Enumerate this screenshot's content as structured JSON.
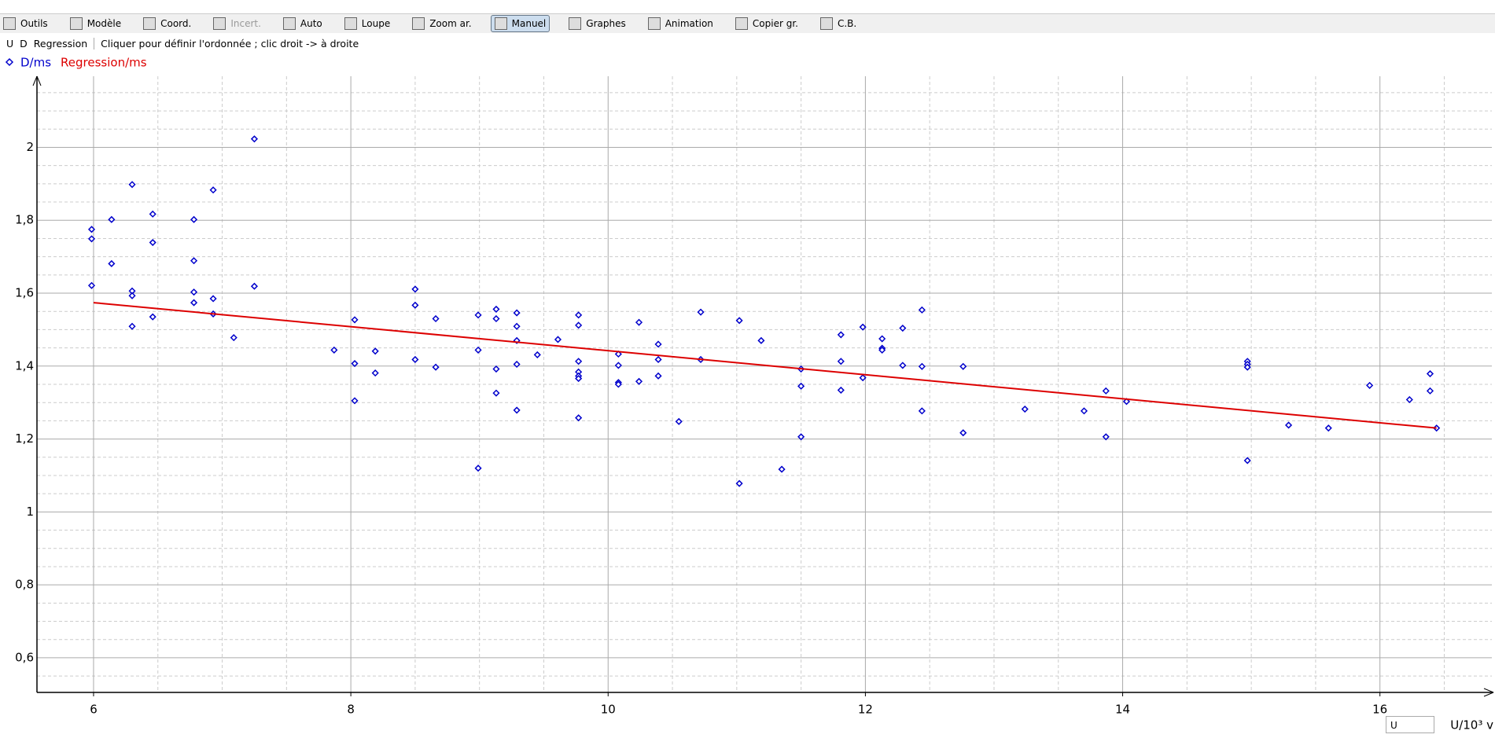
{
  "toolbar": [
    "Outils",
    "Modèle",
    "Coord.",
    "Incert.",
    "Auto",
    "Loupe",
    "Zoom ar.",
    "Manuel",
    "Graphes",
    "Animation",
    "Copier gr.",
    "C.B."
  ],
  "subbar": {
    "tabs": [
      "U",
      "D",
      "Regression"
    ],
    "hint": "Cliquer pour définir l'ordonnée ; clic droit -> à droite"
  },
  "x_selector": "U",
  "chart_data": {
    "type": "scatter",
    "xlabel": "U/10³ v",
    "xlim": [
      5.56,
      16.87
    ],
    "ylim": [
      0.505,
      2.195
    ],
    "xticks": [
      6,
      8,
      10,
      12,
      14,
      16
    ],
    "yticks": [
      {
        "value": 0.6,
        "label": "0,6"
      },
      {
        "value": 0.8,
        "label": "0,8"
      },
      1,
      {
        "value": 1.2,
        "label": "1,2"
      },
      {
        "value": 1.4,
        "label": "1,4"
      },
      {
        "value": 1.6,
        "label": "1,6"
      },
      {
        "value": 1.8,
        "label": "1,8"
      },
      2
    ],
    "x_minor_ticks": [
      6.5,
      7,
      7.5,
      8.5,
      9,
      9.5,
      10.5,
      11,
      11.5,
      12.5,
      13,
      13.5,
      14.5,
      15,
      15.5,
      16.5
    ],
    "y_minor_ticks": [
      0.55,
      0.65,
      0.7,
      0.75,
      0.85,
      0.9,
      0.95,
      1.05,
      1.1,
      1.15,
      1.25,
      1.3,
      1.35,
      1.45,
      1.5,
      1.55,
      1.65,
      1.7,
      1.75,
      1.85,
      1.9,
      1.95,
      2.05,
      2.1,
      2.15
    ],
    "grid": true,
    "series": [
      {
        "name": "D/ms",
        "color": "#0000cc",
        "marker": "diamond",
        "x": [
          5.985,
          5.985,
          5.985,
          6.14,
          6.14,
          6.3,
          6.3,
          6.3,
          6.3,
          6.46,
          6.46,
          6.46,
          6.78,
          6.78,
          6.78,
          6.78,
          6.93,
          6.93,
          6.93,
          7.09,
          7.25,
          7.25,
          7.87,
          8.03,
          8.03,
          8.03,
          8.19,
          8.19,
          8.5,
          8.5,
          8.5,
          8.66,
          8.66,
          8.99,
          8.99,
          8.99,
          9.13,
          9.13,
          9.13,
          9.13,
          9.29,
          9.29,
          9.29,
          9.29,
          9.29,
          9.45,
          9.61,
          9.77,
          9.77,
          9.77,
          9.77,
          9.77,
          9.77,
          9.77,
          10.08,
          10.08,
          10.08,
          10.08,
          10.24,
          10.24,
          10.39,
          10.39,
          10.39,
          10.55,
          10.72,
          10.72,
          11.02,
          11.02,
          11.19,
          11.35,
          11.5,
          11.5,
          11.5,
          11.81,
          11.81,
          11.81,
          11.98,
          11.98,
          12.13,
          12.13,
          12.13,
          12.29,
          12.29,
          12.44,
          12.44,
          12.44,
          12.76,
          12.76,
          13.24,
          13.7,
          13.87,
          13.87,
          14.03,
          14.97,
          14.97,
          14.97,
          14.97,
          15.29,
          15.6,
          15.92,
          16.23,
          16.39,
          16.39,
          16.44
        ],
        "values": [
          1.775,
          1.749,
          1.621,
          1.802,
          1.681,
          1.898,
          1.606,
          1.593,
          1.509,
          1.817,
          1.739,
          1.535,
          1.802,
          1.689,
          1.603,
          1.574,
          1.883,
          1.585,
          1.543,
          1.478,
          2.023,
          1.619,
          1.444,
          1.527,
          1.407,
          1.305,
          1.441,
          1.381,
          1.611,
          1.567,
          1.418,
          1.53,
          1.397,
          1.54,
          1.444,
          1.12,
          1.556,
          1.53,
          1.392,
          1.326,
          1.546,
          1.509,
          1.47,
          1.405,
          1.279,
          1.431,
          1.473,
          1.54,
          1.512,
          1.413,
          1.384,
          1.373,
          1.366,
          1.258,
          1.433,
          1.402,
          1.355,
          1.35,
          1.52,
          1.358,
          1.46,
          1.418,
          1.373,
          1.248,
          1.548,
          1.418,
          1.525,
          1.078,
          1.47,
          1.117,
          1.392,
          1.345,
          1.206,
          1.486,
          1.413,
          1.334,
          1.507,
          1.368,
          1.475,
          1.449,
          1.444,
          1.504,
          1.402,
          1.554,
          1.399,
          1.277,
          1.399,
          1.217,
          1.282,
          1.277,
          1.332,
          1.206,
          1.303,
          1.413,
          1.405,
          1.397,
          1.141,
          1.238,
          1.23,
          1.347,
          1.308,
          1.379,
          1.332,
          1.23
        ]
      },
      {
        "name": "Regression/ms",
        "color": "#dd0000",
        "type": "line",
        "x": [
          6,
          16.44
        ],
        "values": [
          1.574,
          1.23
        ]
      }
    ]
  }
}
